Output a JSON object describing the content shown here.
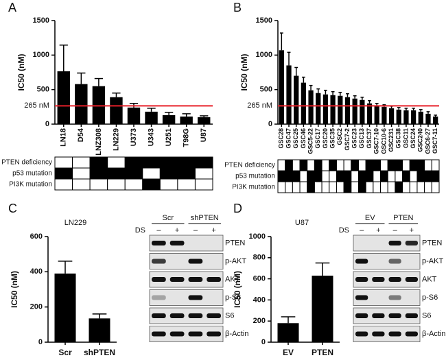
{
  "chart_data": [
    {
      "type": "bar",
      "panel": "A",
      "y_label": "IC50 (nM)",
      "categories": [
        "LN18",
        "D54",
        "LNZ308",
        "LN229",
        "U373",
        "U343",
        "U251",
        "T98G",
        "U87"
      ],
      "values": [
        765,
        580,
        550,
        390,
        240,
        180,
        130,
        110,
        100
      ],
      "errors": [
        380,
        160,
        110,
        60,
        60,
        50,
        40,
        40,
        20
      ],
      "color": "#000000",
      "ylim": [
        0,
        1500
      ],
      "yticks": [
        0,
        500,
        1000,
        1500
      ],
      "reference_line": {
        "value": 265,
        "label": "265 nM",
        "color": "#e8202a"
      },
      "annotation_rows": [
        {
          "label": "PTEN deficiency",
          "status": [
            0,
            0,
            1,
            0,
            1,
            1,
            1,
            1,
            1
          ]
        },
        {
          "label": "p53 mutation",
          "status": [
            1,
            0,
            1,
            1,
            1,
            0,
            1,
            1,
            0
          ]
        },
        {
          "label": "PI3K mutation",
          "status": [
            0,
            0,
            0,
            0,
            0,
            1,
            0,
            0,
            0
          ]
        }
      ]
    },
    {
      "type": "bar",
      "panel": "B",
      "y_label": "IC50 (nM)",
      "categories": [
        "GSC28",
        "GSC47",
        "GSC25",
        "GSC46",
        "GSC5-22",
        "GSC17",
        "GSC20",
        "GSC35",
        "GSC2",
        "GSC7-2",
        "GSC23",
        "GSC13",
        "GSC37",
        "GSC7-10",
        "GSC10-6",
        "GSC231",
        "GSC38",
        "GSC11",
        "GSC24",
        "GSC240",
        "GSC6-27",
        "GSC7-11"
      ],
      "values": [
        1070,
        850,
        700,
        600,
        490,
        450,
        430,
        420,
        410,
        390,
        370,
        350,
        300,
        270,
        250,
        230,
        210,
        200,
        200,
        180,
        150,
        110
      ],
      "errors": [
        250,
        190,
        120,
        80,
        70,
        60,
        60,
        50,
        50,
        50,
        40,
        40,
        40,
        30,
        30,
        30,
        30,
        30,
        30,
        30,
        30,
        20
      ],
      "color": "#000000",
      "ylim": [
        0,
        1500
      ],
      "yticks": [
        0,
        500,
        1000,
        1500
      ],
      "reference_line": {
        "value": 265,
        "label": "265 nM",
        "color": "#e8202a"
      },
      "annotation_rows": [
        {
          "label": "PTEN deficiency",
          "status": [
            0,
            1,
            0,
            1,
            0,
            1,
            0,
            1,
            0,
            0,
            1,
            0,
            1,
            1,
            0,
            1,
            1,
            0,
            1,
            1,
            0,
            0
          ]
        },
        {
          "label": "p53 mutation",
          "status": [
            1,
            1,
            1,
            0,
            1,
            1,
            0,
            0,
            1,
            1,
            0,
            1,
            1,
            0,
            1,
            0,
            0,
            1,
            0,
            1,
            1,
            1
          ]
        },
        {
          "label": "PI3K mutation",
          "status": [
            0,
            0,
            0,
            0,
            1,
            0,
            0,
            0,
            0,
            1,
            0,
            1,
            0,
            0,
            0,
            0,
            1,
            0,
            0,
            0,
            0,
            0
          ]
        }
      ]
    },
    {
      "type": "bar",
      "panel": "C",
      "title": "LN229",
      "y_label": "IC50 (nM)",
      "categories": [
        "Scr",
        "shPTEN"
      ],
      "values": [
        390,
        135
      ],
      "errors": [
        70,
        25
      ],
      "color": "#000000",
      "ylim": [
        0,
        600
      ],
      "yticks": [
        0,
        200,
        400,
        600
      ],
      "blot": {
        "treatment_label": "DS",
        "groups": [
          "Scr",
          "shPTEN"
        ],
        "treatments": [
          "–",
          "+",
          "–",
          "+"
        ],
        "rows": [
          {
            "label": "PTEN",
            "bands": [
              1,
              1,
              0,
              0
            ]
          },
          {
            "label": "p-AKT",
            "bands": [
              0.8,
              0,
              1,
              0
            ]
          },
          {
            "label": "AKT",
            "bands": [
              1,
              1,
              1,
              1
            ]
          },
          {
            "label": "p-S6",
            "bands": [
              0.3,
              0,
              1,
              0
            ]
          },
          {
            "label": "S6",
            "bands": [
              1,
              1,
              1,
              1
            ]
          },
          {
            "label": "β-Actin",
            "bands": [
              1,
              1,
              1,
              1
            ]
          }
        ]
      }
    },
    {
      "type": "bar",
      "panel": "D",
      "title": "U87",
      "y_label": "IC50 (nM)",
      "categories": [
        "EV",
        "PTEN"
      ],
      "values": [
        180,
        630
      ],
      "errors": [
        60,
        120
      ],
      "color": "#000000",
      "ylim": [
        0,
        1000
      ],
      "yticks": [
        0,
        200,
        400,
        600,
        800,
        1000
      ],
      "blot": {
        "treatment_label": "DS",
        "groups": [
          "EV",
          "PTEN"
        ],
        "treatments": [
          "–",
          "+",
          "–",
          "+"
        ],
        "rows": [
          {
            "label": "PTEN",
            "bands": [
              0,
              0,
              1,
              0.9
            ]
          },
          {
            "label": "p-AKT",
            "bands": [
              1,
              0,
              0.6,
              0
            ]
          },
          {
            "label": "AKT",
            "bands": [
              1,
              1,
              1,
              1
            ]
          },
          {
            "label": "p-S6",
            "bands": [
              1,
              0,
              0.5,
              0
            ]
          },
          {
            "label": "S6",
            "bands": [
              1,
              1,
              1,
              1
            ]
          },
          {
            "label": "β-Actin",
            "bands": [
              1,
              1,
              1,
              1
            ]
          }
        ]
      }
    }
  ]
}
